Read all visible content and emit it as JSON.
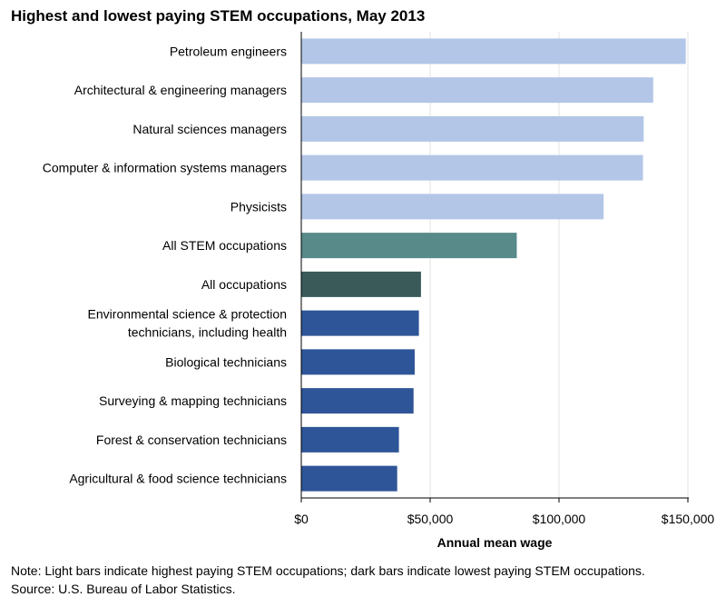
{
  "chart_data": {
    "type": "bar",
    "orientation": "horizontal",
    "title": "Highest and lowest paying STEM occupations, May 2013",
    "xlabel": "Annual mean wage",
    "ylabel": "",
    "xlim": [
      0,
      150000
    ],
    "x_ticks": [
      0,
      50000,
      100000,
      150000
    ],
    "x_tick_labels": [
      "$0",
      "$50,000",
      "$100,000",
      "$150,000"
    ],
    "grid": "vertical",
    "categories": [
      "Petroleum engineers",
      "Architectural & engineering managers",
      "Natural sciences managers",
      "Computer & information systems managers",
      "Physicists",
      "All STEM occupations",
      "All occupations",
      "Environmental science & protection technicians, including health",
      "Biological technicians",
      "Surveying & mapping technicians",
      "Forest & conservation technicians",
      "Agricultural & food science technicians"
    ],
    "category_lines": [
      [
        "Petroleum engineers"
      ],
      [
        "Architectural & engineering managers"
      ],
      [
        "Natural sciences managers"
      ],
      [
        "Computer & information systems managers"
      ],
      [
        "Physicists"
      ],
      [
        "All STEM occupations"
      ],
      [
        "All occupations"
      ],
      [
        "Environmental science & protection",
        "technicians, including health"
      ],
      [
        "Biological technicians"
      ],
      [
        "Surveying & mapping technicians"
      ],
      [
        "Forest & conservation technicians"
      ],
      [
        "Agricultural & food science technicians"
      ]
    ],
    "values": [
      149180,
      136550,
      132850,
      132570,
      117300,
      83610,
      46440,
      45630,
      44000,
      43560,
      37880,
      37210
    ],
    "groups": [
      "highest",
      "highest",
      "highest",
      "highest",
      "highest",
      "stem",
      "all",
      "lowest",
      "lowest",
      "lowest",
      "lowest",
      "lowest"
    ],
    "colors": {
      "highest": "#b3c6e7",
      "stem": "#588a8a",
      "all": "#3a5a5a",
      "lowest": "#2e5597"
    }
  },
  "note": {
    "line1": "Note: Light bars indicate highest paying STEM occupations; dark bars indicate lowest paying STEM occupations.",
    "line2": "Source: U.S. Bureau of Labor Statistics."
  }
}
